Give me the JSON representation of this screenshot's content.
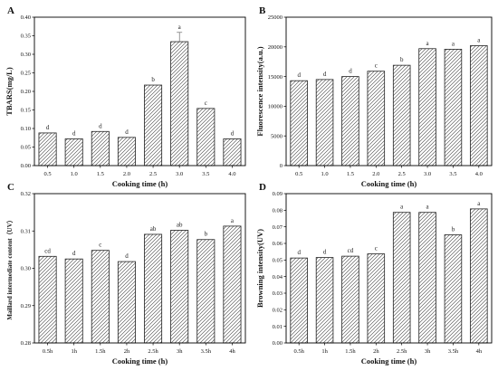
{
  "colors": {
    "bar_fill": "#ffffff",
    "bar_stroke": "#222222",
    "hatch": "#444444",
    "axis": "#000000"
  },
  "chart_data": [
    {
      "panel": "A",
      "type": "bar",
      "categories": [
        "0.5",
        "1.0",
        "1.5",
        "2.0",
        "2.5",
        "3.0",
        "3.5",
        "4.0"
      ],
      "values": [
        0.088,
        0.072,
        0.092,
        0.076,
        0.217,
        0.334,
        0.154,
        0.072
      ],
      "errors": [
        0.0,
        0.0,
        0.0,
        0.0,
        0.0,
        0.025,
        0.0,
        0.0
      ],
      "letters": [
        "d",
        "d",
        "d",
        "d",
        "b",
        "a",
        "c",
        "d"
      ],
      "xlabel": "Cooking time (h)",
      "ylabel": "TBARS(mg/L)",
      "ylim": [
        0.0,
        0.4
      ],
      "yticks": [
        0.0,
        0.05,
        0.1,
        0.15,
        0.2,
        0.25,
        0.3,
        0.35,
        0.4
      ],
      "ytick_labels": [
        "0.00",
        "0.05",
        "0.10",
        "0.15",
        "0.20",
        "0.25",
        "0.30",
        "0.35",
        "0.40"
      ],
      "grid": false,
      "pattern": "diagonal-hatch"
    },
    {
      "panel": "B",
      "type": "bar",
      "categories": [
        "0.5",
        "1.0",
        "1.5",
        "2.0",
        "2.5",
        "3.0",
        "3.5",
        "4.0"
      ],
      "values": [
        14300,
        14500,
        15000,
        15900,
        16900,
        19700,
        19600,
        20200
      ],
      "errors": [
        0,
        0,
        0,
        0,
        0,
        0,
        0,
        0
      ],
      "letters": [
        "d",
        "d",
        "d",
        "c",
        "b",
        "a",
        "a",
        "a"
      ],
      "xlabel": "Cooking time (h)",
      "ylabel": "Fluorescence intensity(a.u.)",
      "ylim": [
        0,
        25000
      ],
      "yticks": [
        0,
        5000,
        10000,
        15000,
        20000,
        25000
      ],
      "ytick_labels": [
        "0",
        "5000",
        "10000",
        "15000",
        "20000",
        "25000"
      ],
      "grid": false,
      "pattern": "diagonal-hatch"
    },
    {
      "panel": "C",
      "type": "bar",
      "categories": [
        "0.5h",
        "1h",
        "1.5h",
        "2h",
        "2.5h",
        "3h",
        "3.5h",
        "4h"
      ],
      "values": [
        0.3032,
        0.3025,
        0.3048,
        0.3018,
        0.3091,
        0.3102,
        0.3077,
        0.3113
      ],
      "errors": [
        0,
        0,
        0,
        0,
        0,
        0,
        0,
        0
      ],
      "letters": [
        "cd",
        "d",
        "c",
        "d",
        "ab",
        "ab",
        "b",
        "a"
      ],
      "xlabel": "Cooking time (h)",
      "ylabel": "Maillard intermediate content（UV）",
      "ylim": [
        0.28,
        0.32
      ],
      "yticks": [
        0.28,
        0.29,
        0.3,
        0.31,
        0.32
      ],
      "ytick_labels": [
        "0.28",
        "0.29",
        "0.30",
        "0.31",
        "0.32"
      ],
      "grid": false,
      "pattern": "diagonal-hatch"
    },
    {
      "panel": "D",
      "type": "bar",
      "categories": [
        "0.5h",
        "1h",
        "1.5h",
        "2h",
        "2.5h",
        "3h",
        "3.5h",
        "4h"
      ],
      "values": [
        0.0512,
        0.0515,
        0.0523,
        0.0537,
        0.0787,
        0.0787,
        0.0652,
        0.0808
      ],
      "errors": [
        0,
        0,
        0,
        0,
        0,
        0,
        0,
        0
      ],
      "letters": [
        "d",
        "d",
        "cd",
        "c",
        "a",
        "a",
        "b",
        "a"
      ],
      "xlabel": "Cooking time (h)",
      "ylabel": "Browning intensity(UV)",
      "ylim": [
        0.0,
        0.09
      ],
      "yticks": [
        0.0,
        0.01,
        0.02,
        0.03,
        0.04,
        0.05,
        0.06,
        0.07,
        0.08,
        0.09
      ],
      "ytick_labels": [
        "0.00",
        "0.01",
        "0.02",
        "0.03",
        "0.04",
        "0.05",
        "0.06",
        "0.07",
        "0.08",
        "0.09"
      ],
      "grid": false,
      "pattern": "diagonal-hatch"
    }
  ]
}
